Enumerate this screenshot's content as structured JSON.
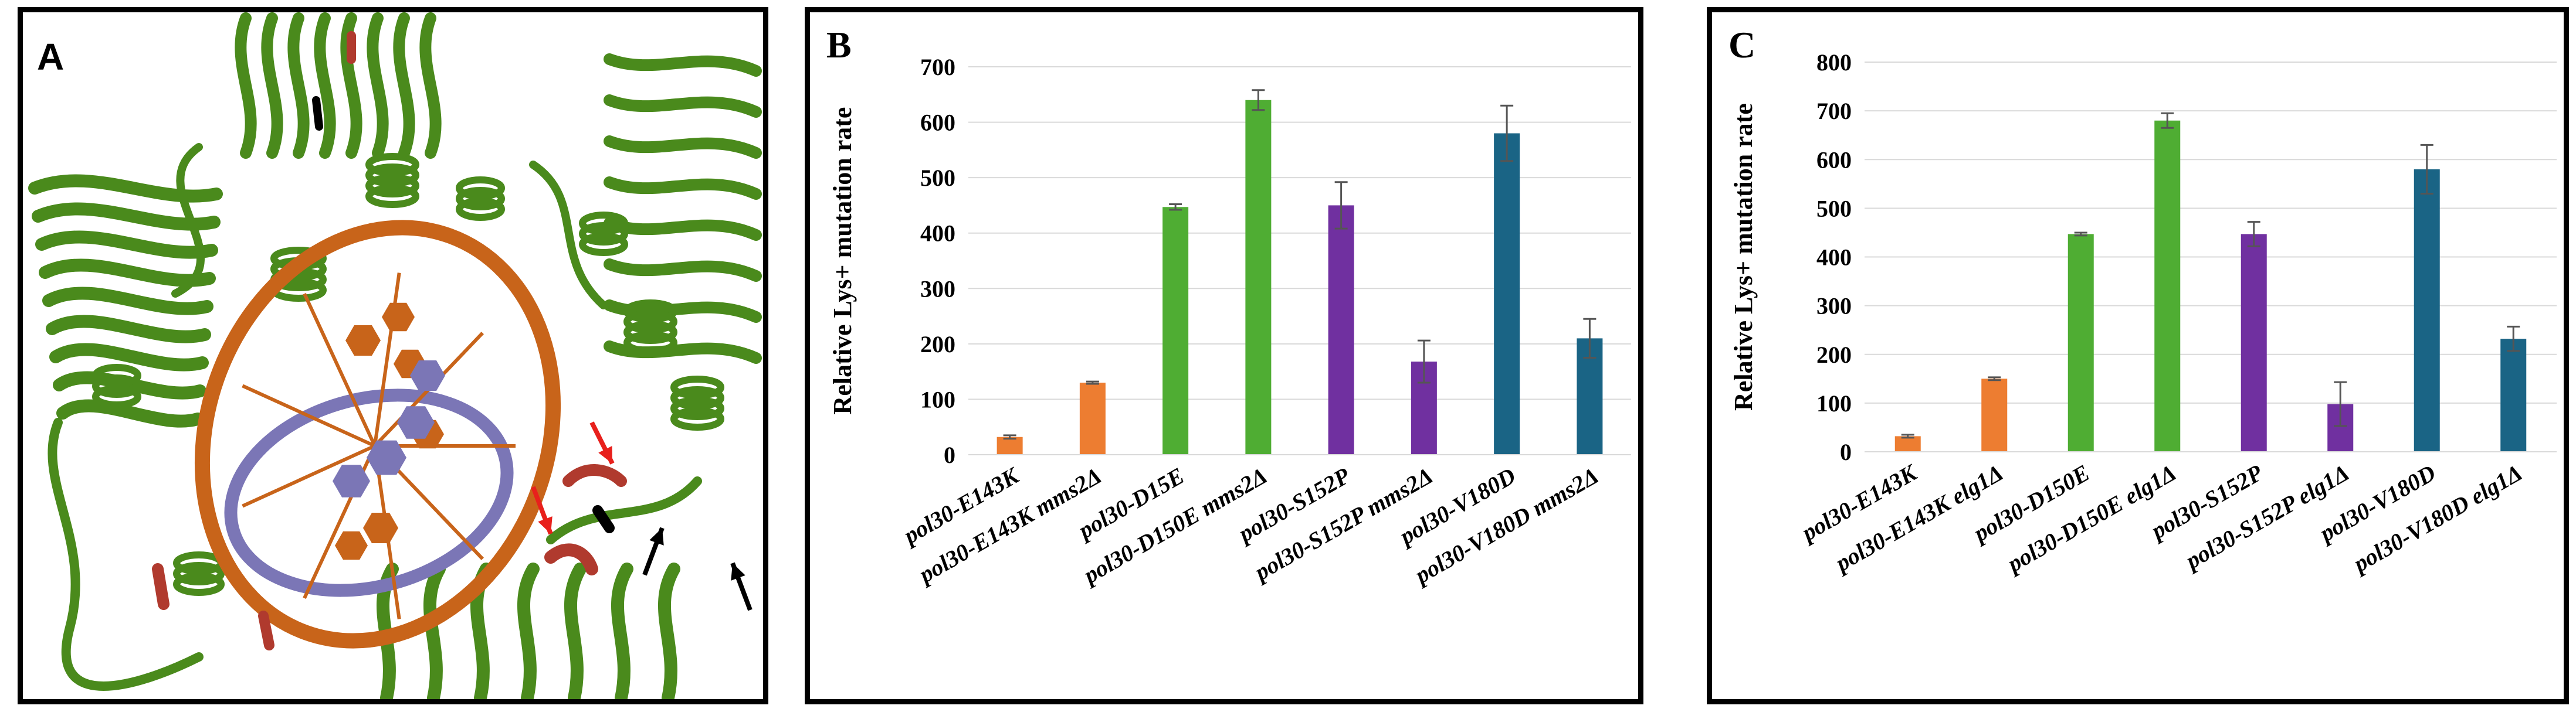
{
  "panels": {
    "a": {
      "label": "A"
    },
    "b": {
      "label": "B"
    },
    "c": {
      "label": "C"
    }
  },
  "structure": {
    "protein_color": "#4a8a1c",
    "dna_strand_color": "#c8641a",
    "dna_strand2_color": "#7b76b6",
    "highlight_red": "#b03a2e",
    "highlight_black": "#000000",
    "arrow_red": "#e8201c",
    "arrow_black": "#000000"
  },
  "chart_data": [
    {
      "type": "bar",
      "ylabel": "Relative Lys+ mutation rate",
      "xlabel": "",
      "ylim": [
        0,
        700
      ],
      "yticks": [
        0,
        100,
        200,
        300,
        400,
        500,
        600,
        700
      ],
      "grid": true,
      "legend": "none",
      "categories": [
        "pol30-E143K",
        "pol30-E143K mms2Δ",
        "pol30-D15E",
        "pol30-D150E mms2Δ",
        "pol30-S152P",
        "pol30-S152P mms2Δ",
        "pol30-V180D",
        "pol30-V180D mms2Δ"
      ],
      "values": [
        32,
        130,
        447,
        640,
        450,
        168,
        580,
        210
      ],
      "errors": [
        3,
        2,
        5,
        18,
        42,
        38,
        50,
        35
      ],
      "colors": [
        "#ed7d31",
        "#ed7d31",
        "#4fad33",
        "#4fad33",
        "#7030a0",
        "#7030a0",
        "#1a6485",
        "#1a6485"
      ]
    },
    {
      "type": "bar",
      "ylabel": "Relative Lys+ mutation rate",
      "xlabel": "",
      "ylim": [
        0,
        800
      ],
      "yticks": [
        0,
        100,
        200,
        300,
        400,
        500,
        600,
        700,
        800
      ],
      "grid": true,
      "legend": "none",
      "categories": [
        "pol30-E143K",
        "pol30-E143K elg1Δ",
        "pol30-D150E",
        "pol30-D150E elg1Δ",
        "pol30-S152P",
        "pol30-S152P elg1Δ",
        "pol30-V180D",
        "pol30-V180D elg1Δ"
      ],
      "values": [
        32,
        150,
        447,
        680,
        447,
        98,
        580,
        232
      ],
      "errors": [
        3,
        3,
        3,
        15,
        25,
        45,
        50,
        25
      ],
      "colors": [
        "#ed7d31",
        "#ed7d31",
        "#4fad33",
        "#4fad33",
        "#7030a0",
        "#7030a0",
        "#1a6485",
        "#1a6485"
      ]
    }
  ]
}
